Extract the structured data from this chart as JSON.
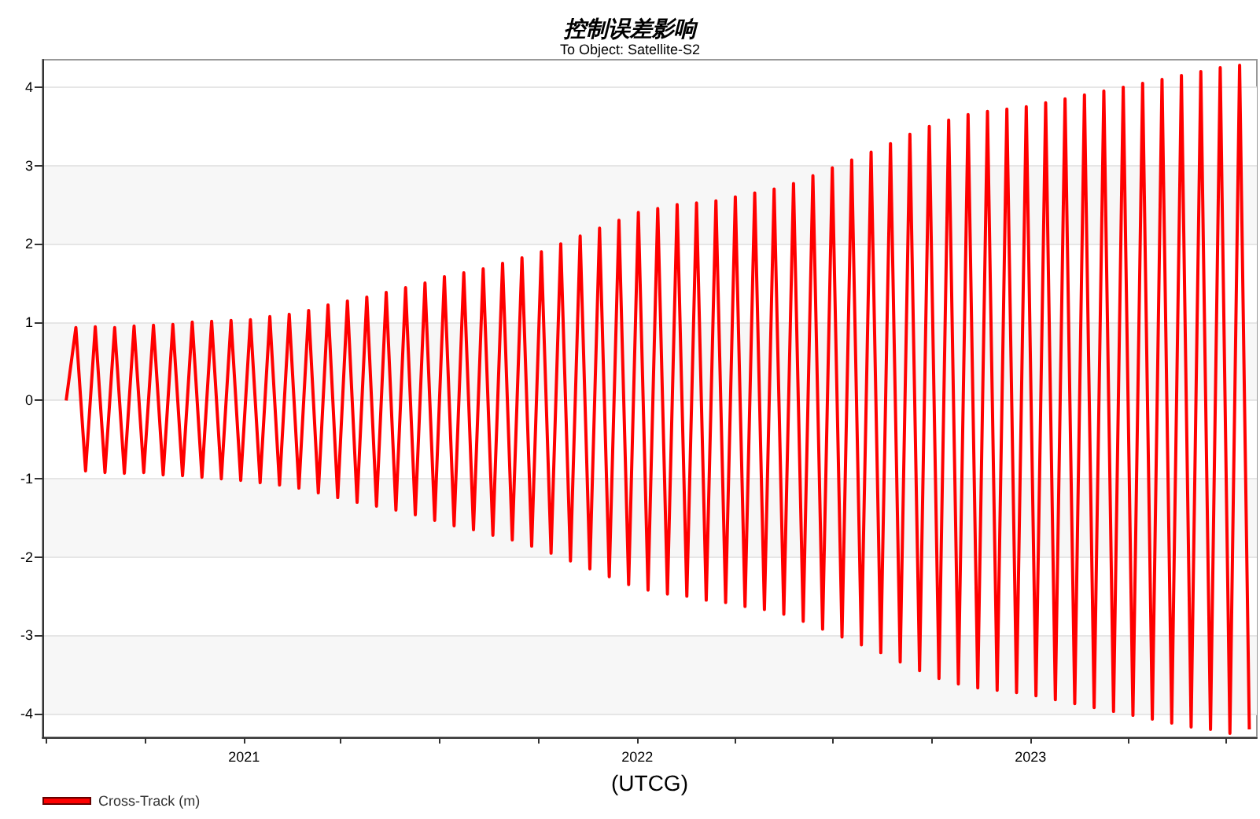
{
  "chart_data": {
    "type": "line",
    "title": "控制误差影响",
    "subtitle": "To Object: Satellite-S2",
    "xlabel": "(UTCG)",
    "xlim": [
      "2020-06-28",
      "2023-07-30"
    ],
    "xticks": [
      {
        "value": "2020-07-01",
        "label": null
      },
      {
        "value": "2020-10-01",
        "label": null
      },
      {
        "value": "2021-01-01",
        "label": "2021"
      },
      {
        "value": "2021-04-01",
        "label": null
      },
      {
        "value": "2021-07-01",
        "label": null
      },
      {
        "value": "2021-10-01",
        "label": null
      },
      {
        "value": "2022-01-01",
        "label": "2022"
      },
      {
        "value": "2022-04-01",
        "label": null
      },
      {
        "value": "2022-07-01",
        "label": null
      },
      {
        "value": "2022-10-01",
        "label": null
      },
      {
        "value": "2023-01-01",
        "label": "2023"
      },
      {
        "value": "2023-04-01",
        "label": null
      },
      {
        "value": "2023-07-01",
        "label": null
      }
    ],
    "ylim": [
      -4.3,
      4.35
    ],
    "yticks": [
      -4,
      -3,
      -2,
      -1,
      0,
      1,
      2,
      3,
      4
    ],
    "grid": "y",
    "legend": "bottom left",
    "marker": "none",
    "line_style": "solid",
    "series": [
      {
        "name": "Cross-Track (m)",
        "color": "#ff0000",
        "x": [
          "2020-07-20",
          "2020-07-29",
          "2020-08-07",
          "2020-08-16",
          "2020-08-25",
          "2020-09-03",
          "2020-09-12",
          "2020-09-21",
          "2020-09-30",
          "2020-10-09",
          "2020-10-18",
          "2020-10-27",
          "2020-11-05",
          "2020-11-14",
          "2020-11-23",
          "2020-12-02",
          "2020-12-11",
          "2020-12-20",
          "2020-12-29",
          "2021-01-07",
          "2021-01-16",
          "2021-01-25",
          "2021-02-03",
          "2021-02-12",
          "2021-02-21",
          "2021-03-02",
          "2021-03-11",
          "2021-03-20",
          "2021-03-29",
          "2021-04-07",
          "2021-04-16",
          "2021-04-25",
          "2021-05-04",
          "2021-05-13",
          "2021-05-22",
          "2021-05-31",
          "2021-06-09",
          "2021-06-18",
          "2021-06-27",
          "2021-07-06",
          "2021-07-15",
          "2021-07-24",
          "2021-08-02",
          "2021-08-11",
          "2021-08-20",
          "2021-08-29",
          "2021-09-07",
          "2021-09-16",
          "2021-09-25",
          "2021-10-04",
          "2021-10-13",
          "2021-10-22",
          "2021-10-31",
          "2021-11-09",
          "2021-11-18",
          "2021-11-27",
          "2021-12-06",
          "2021-12-15",
          "2021-12-24",
          "2022-01-02",
          "2022-01-11",
          "2022-01-20",
          "2022-01-29",
          "2022-02-07",
          "2022-02-16",
          "2022-02-25",
          "2022-03-06",
          "2022-03-15",
          "2022-03-24",
          "2022-04-02",
          "2022-04-11",
          "2022-04-20",
          "2022-04-29",
          "2022-05-08",
          "2022-05-17",
          "2022-05-26",
          "2022-06-04",
          "2022-06-13",
          "2022-06-22",
          "2022-07-01",
          "2022-07-10",
          "2022-07-19",
          "2022-07-28",
          "2022-08-06",
          "2022-08-15",
          "2022-08-24",
          "2022-09-02",
          "2022-09-11",
          "2022-09-20",
          "2022-09-29",
          "2022-10-08",
          "2022-10-17",
          "2022-10-26",
          "2022-11-04",
          "2022-11-13",
          "2022-11-22",
          "2022-12-01",
          "2022-12-10",
          "2022-12-19",
          "2022-12-28",
          "2023-01-06",
          "2023-01-15",
          "2023-01-24",
          "2023-02-02",
          "2023-02-11",
          "2023-02-20",
          "2023-03-01",
          "2023-03-10",
          "2023-03-19",
          "2023-03-28",
          "2023-04-06",
          "2023-04-15",
          "2023-04-24",
          "2023-05-03",
          "2023-05-12",
          "2023-05-21",
          "2023-05-30",
          "2023-06-08",
          "2023-06-17",
          "2023-06-26",
          "2023-07-05",
          "2023-07-14",
          "2023-07-23"
        ],
        "values": [
          0,
          0.93,
          -0.9,
          0.94,
          -0.92,
          0.93,
          -0.93,
          0.95,
          -0.92,
          0.96,
          -0.95,
          0.97,
          -0.96,
          1.0,
          -0.98,
          1.01,
          -1.0,
          1.02,
          -1.02,
          1.03,
          -1.05,
          1.07,
          -1.08,
          1.1,
          -1.12,
          1.15,
          -1.18,
          1.22,
          -1.24,
          1.27,
          -1.3,
          1.32,
          -1.35,
          1.38,
          -1.4,
          1.44,
          -1.46,
          1.5,
          -1.53,
          1.58,
          -1.6,
          1.63,
          -1.65,
          1.68,
          -1.72,
          1.75,
          -1.78,
          1.82,
          -1.86,
          1.9,
          -1.95,
          2.0,
          -2.05,
          2.1,
          -2.15,
          2.2,
          -2.25,
          2.3,
          -2.35,
          2.4,
          -2.42,
          2.45,
          -2.47,
          2.5,
          -2.5,
          2.52,
          -2.55,
          2.55,
          -2.58,
          2.6,
          -2.63,
          2.65,
          -2.67,
          2.7,
          -2.73,
          2.77,
          -2.82,
          2.87,
          -2.92,
          2.97,
          -3.02,
          3.07,
          -3.12,
          3.17,
          -3.22,
          3.28,
          -3.34,
          3.4,
          -3.45,
          3.5,
          -3.55,
          3.58,
          -3.62,
          3.65,
          -3.67,
          3.69,
          -3.7,
          3.72,
          -3.73,
          3.75,
          -3.77,
          3.8,
          -3.82,
          3.85,
          -3.87,
          3.9,
          -3.92,
          3.95,
          -3.97,
          4.0,
          -4.02,
          4.05,
          -4.07,
          4.1,
          -4.12,
          4.15,
          -4.17,
          4.2,
          -4.2,
          4.25,
          -4.25,
          4.28,
          -4.2
        ]
      }
    ]
  }
}
